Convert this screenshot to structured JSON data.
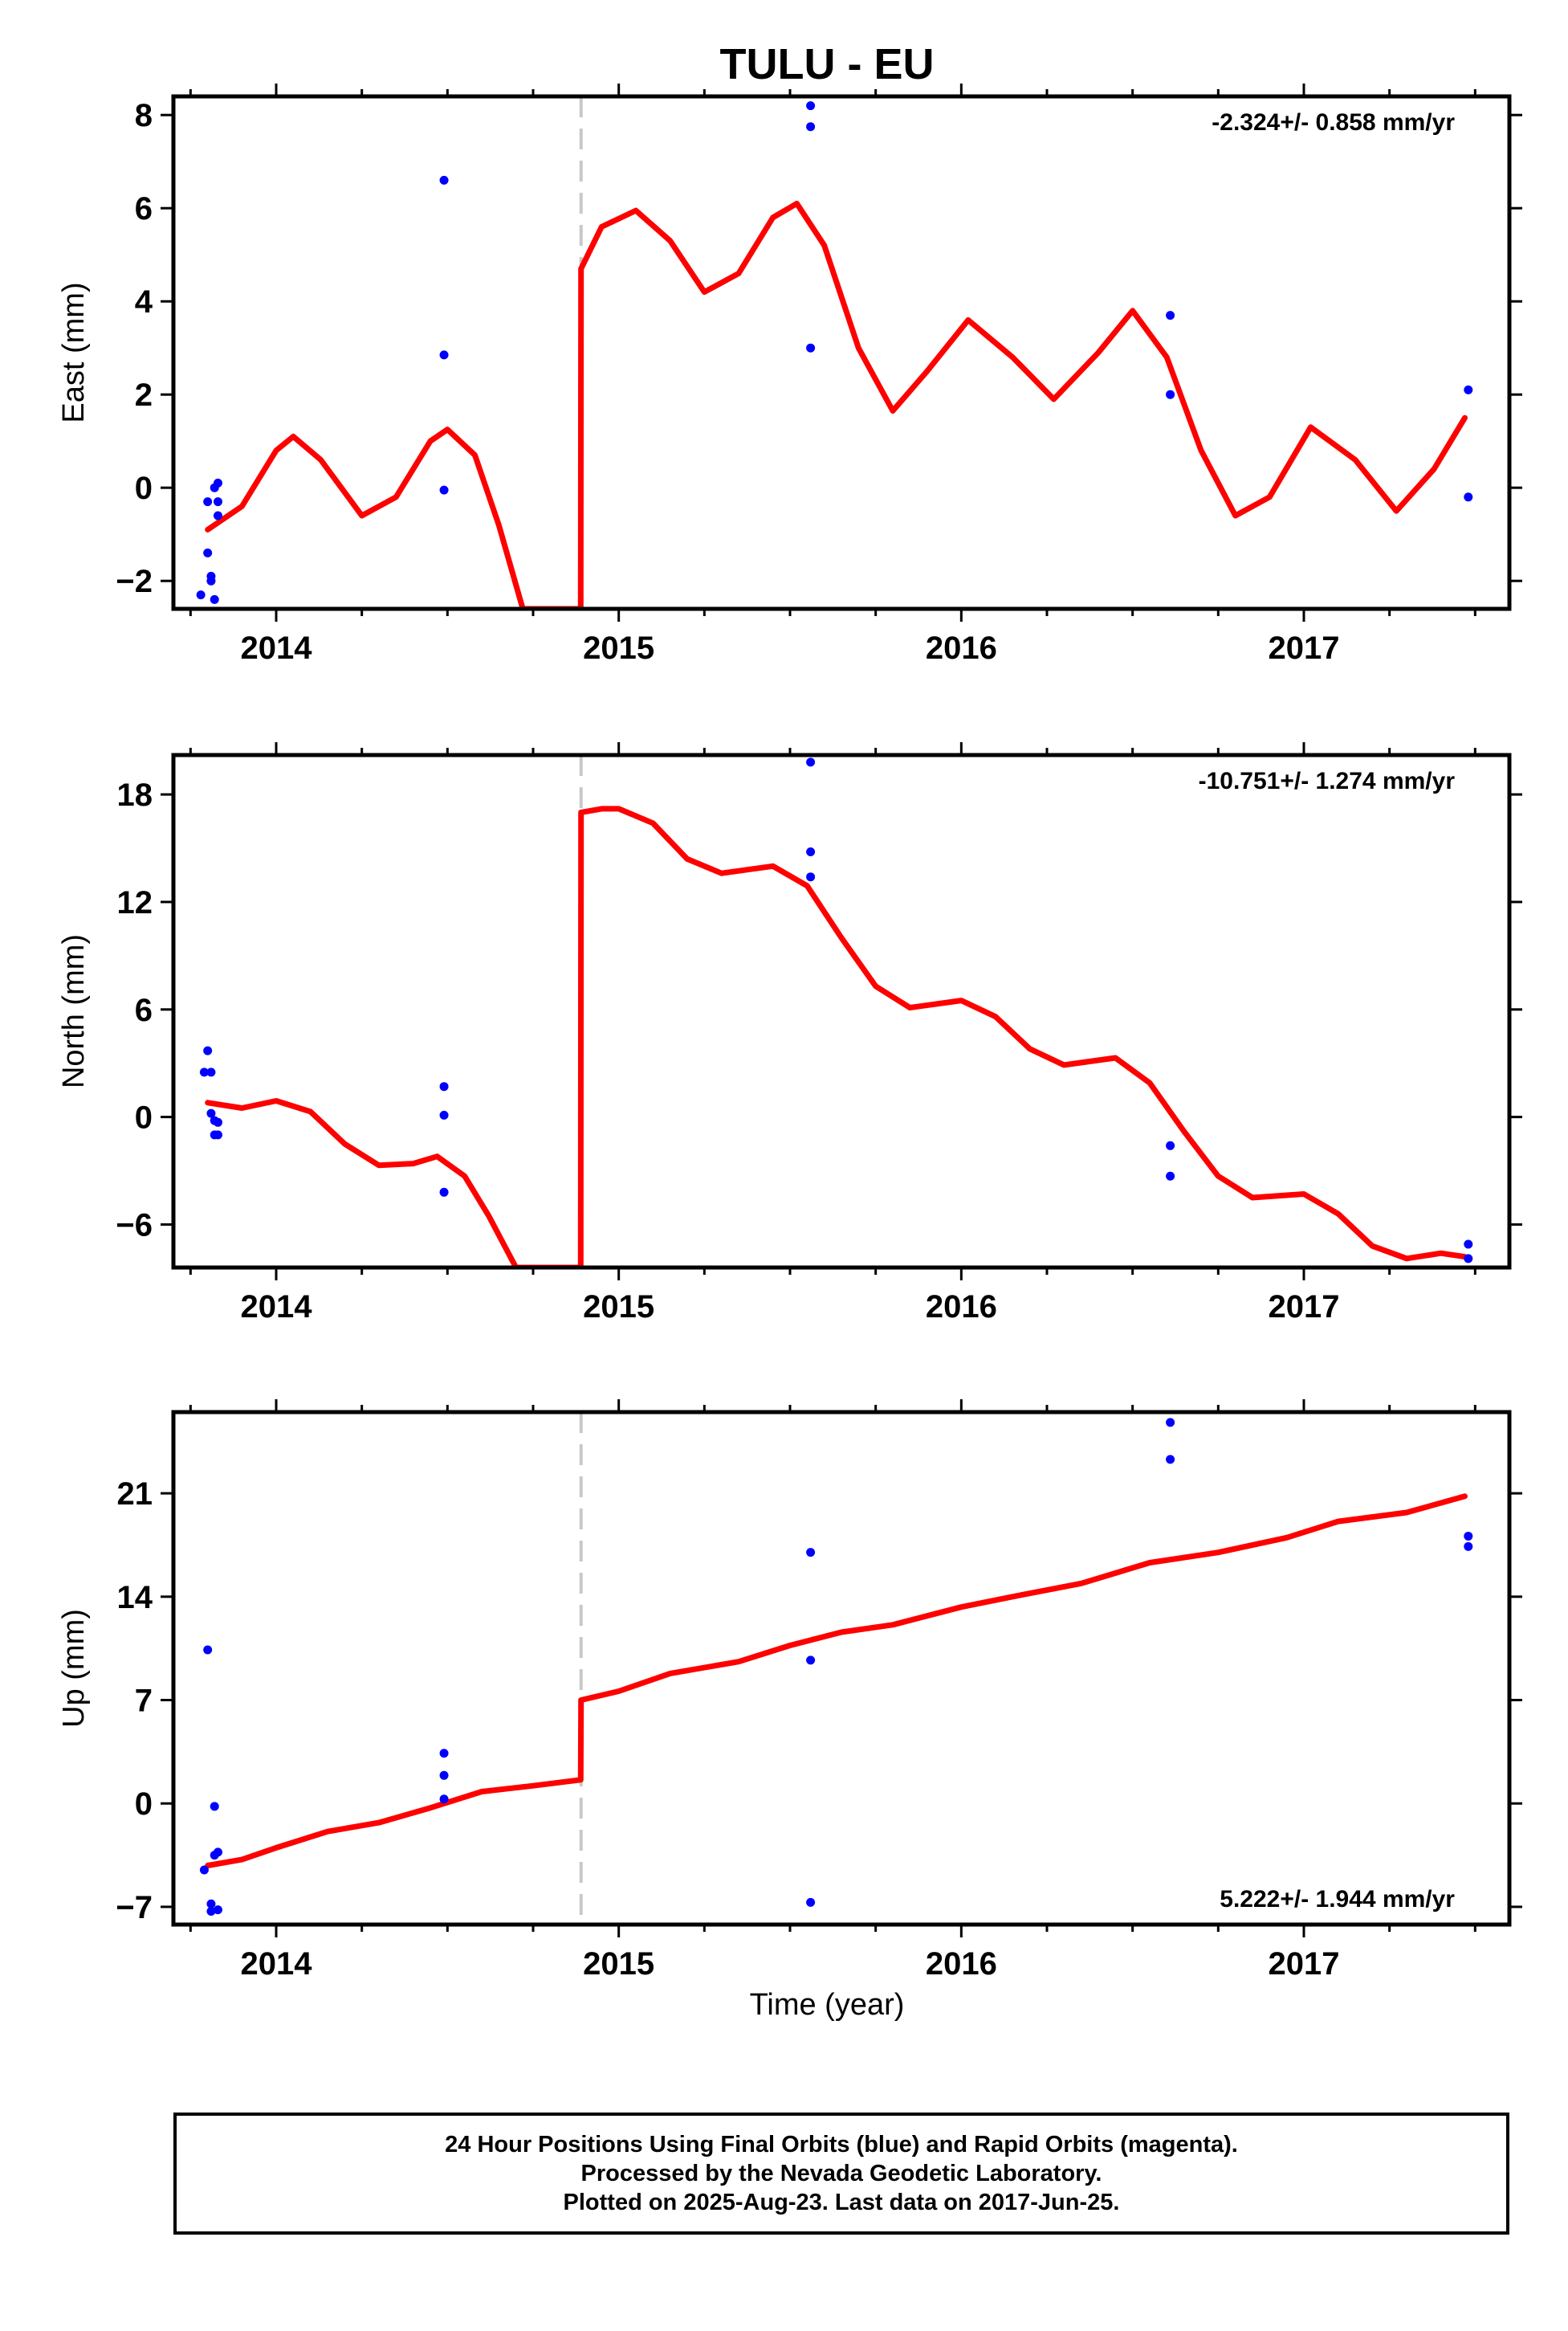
{
  "title": "TULU - EU",
  "colors": {
    "final_orbits": "#0000ff",
    "model": "#ff0000",
    "offset": "#c8c8c8",
    "frame": "#000000"
  },
  "xlabel": "Time (year)",
  "chart_data": [
    {
      "type": "scatter",
      "ylabel": "East (mm)",
      "rate_label": "-2.324+/- 0.858 mm/yr",
      "xlim": [
        2013.7,
        2017.6
      ],
      "ylim": [
        -2.6,
        8.4
      ],
      "xticks": [
        2014,
        2015,
        2016,
        2017
      ],
      "yticks": [
        -2,
        0,
        2,
        4,
        6,
        8
      ],
      "xtick_labels": [
        "2014",
        "2015",
        "2016",
        "2017"
      ],
      "ytick_labels": [
        "−2",
        "0",
        "2",
        "4",
        "6",
        "8"
      ],
      "offset_x": 2014.89,
      "points": [
        [
          2013.78,
          -2.3
        ],
        [
          2013.8,
          -0.3
        ],
        [
          2013.8,
          -1.4
        ],
        [
          2013.81,
          -1.9
        ],
        [
          2013.81,
          -2.0
        ],
        [
          2013.82,
          -2.4
        ],
        [
          2013.82,
          0.0
        ],
        [
          2013.83,
          0.1
        ],
        [
          2013.83,
          -0.3
        ],
        [
          2013.83,
          -0.6
        ],
        [
          2014.49,
          6.6
        ],
        [
          2014.49,
          2.85
        ],
        [
          2014.49,
          -0.05
        ],
        [
          2015.56,
          8.2
        ],
        [
          2015.56,
          7.75
        ],
        [
          2015.56,
          3.0
        ],
        [
          2016.61,
          3.7
        ],
        [
          2016.61,
          2.0
        ],
        [
          2017.48,
          2.1
        ],
        [
          2017.48,
          -0.2
        ]
      ],
      "model": [
        [
          2013.8,
          -0.9
        ],
        [
          2013.9,
          -0.4
        ],
        [
          2014.0,
          0.8
        ],
        [
          2014.05,
          1.1
        ],
        [
          2014.13,
          0.6
        ],
        [
          2014.25,
          -0.6
        ],
        [
          2014.35,
          -0.2
        ],
        [
          2014.45,
          1.0
        ],
        [
          2014.5,
          1.25
        ],
        [
          2014.58,
          0.7
        ],
        [
          2014.65,
          -0.8
        ],
        [
          2014.72,
          -2.6
        ],
        [
          2014.889,
          -2.6
        ],
        [
          2014.89,
          4.7
        ],
        [
          2014.95,
          5.6
        ],
        [
          2015.05,
          5.95
        ],
        [
          2015.15,
          5.3
        ],
        [
          2015.25,
          4.2
        ],
        [
          2015.35,
          4.6
        ],
        [
          2015.45,
          5.8
        ],
        [
          2015.52,
          6.1
        ],
        [
          2015.6,
          5.2
        ],
        [
          2015.7,
          3.0
        ],
        [
          2015.8,
          1.65
        ],
        [
          2015.9,
          2.5
        ],
        [
          2016.02,
          3.6
        ],
        [
          2016.15,
          2.8
        ],
        [
          2016.27,
          1.9
        ],
        [
          2016.4,
          2.9
        ],
        [
          2016.5,
          3.8
        ],
        [
          2016.6,
          2.8
        ],
        [
          2016.7,
          0.8
        ],
        [
          2016.8,
          -0.6
        ],
        [
          2016.9,
          -0.2
        ],
        [
          2017.02,
          1.3
        ],
        [
          2017.15,
          0.6
        ],
        [
          2017.27,
          -0.5
        ],
        [
          2017.38,
          0.4
        ],
        [
          2017.47,
          1.5
        ]
      ]
    },
    {
      "type": "scatter",
      "ylabel": "North (mm)",
      "rate_label": "-10.751+/- 1.274 mm/yr",
      "xlim": [
        2013.7,
        2017.6
      ],
      "ylim": [
        -8.4,
        20.2
      ],
      "xticks": [
        2014,
        2015,
        2016,
        2017
      ],
      "yticks": [
        -6,
        0,
        6,
        12,
        18
      ],
      "xtick_labels": [
        "2014",
        "2015",
        "2016",
        "2017"
      ],
      "ytick_labels": [
        "−6",
        "0",
        "6",
        "12",
        "18"
      ],
      "offset_x": 2014.89,
      "points": [
        [
          2013.79,
          2.5
        ],
        [
          2013.8,
          3.7
        ],
        [
          2013.81,
          2.5
        ],
        [
          2013.81,
          0.2
        ],
        [
          2013.82,
          -0.2
        ],
        [
          2013.82,
          -1.0
        ],
        [
          2013.83,
          -0.3
        ],
        [
          2013.83,
          -1.0
        ],
        [
          2014.49,
          1.7
        ],
        [
          2014.49,
          0.1
        ],
        [
          2014.49,
          -4.2
        ],
        [
          2015.56,
          19.8
        ],
        [
          2015.56,
          14.8
        ],
        [
          2015.56,
          13.4
        ],
        [
          2016.61,
          -1.6
        ],
        [
          2016.61,
          -3.3
        ],
        [
          2017.48,
          -7.1
        ],
        [
          2017.48,
          -7.9
        ]
      ],
      "model": [
        [
          2013.8,
          0.8
        ],
        [
          2013.9,
          0.5
        ],
        [
          2014.0,
          0.9
        ],
        [
          2014.1,
          0.3
        ],
        [
          2014.2,
          -1.5
        ],
        [
          2014.3,
          -2.7
        ],
        [
          2014.4,
          -2.6
        ],
        [
          2014.47,
          -2.2
        ],
        [
          2014.55,
          -3.3
        ],
        [
          2014.62,
          -5.5
        ],
        [
          2014.7,
          -8.4
        ],
        [
          2014.889,
          -8.4
        ],
        [
          2014.89,
          17.0
        ],
        [
          2014.95,
          17.2
        ],
        [
          2015.0,
          17.2
        ],
        [
          2015.1,
          16.4
        ],
        [
          2015.2,
          14.4
        ],
        [
          2015.3,
          13.6
        ],
        [
          2015.45,
          14.0
        ],
        [
          2015.55,
          12.9
        ],
        [
          2015.65,
          10.0
        ],
        [
          2015.75,
          7.3
        ],
        [
          2015.85,
          6.1
        ],
        [
          2016.0,
          6.5
        ],
        [
          2016.1,
          5.6
        ],
        [
          2016.2,
          3.8
        ],
        [
          2016.3,
          2.9
        ],
        [
          2016.45,
          3.3
        ],
        [
          2016.55,
          1.9
        ],
        [
          2016.65,
          -0.8
        ],
        [
          2016.75,
          -3.3
        ],
        [
          2016.85,
          -4.5
        ],
        [
          2017.0,
          -4.3
        ],
        [
          2017.1,
          -5.4
        ],
        [
          2017.2,
          -7.2
        ],
        [
          2017.3,
          -7.9
        ],
        [
          2017.4,
          -7.6
        ],
        [
          2017.47,
          -7.8
        ]
      ]
    },
    {
      "type": "scatter",
      "ylabel": "Up (mm)",
      "rate_label": "5.222+/- 1.944 mm/yr",
      "xlim": [
        2013.7,
        2017.6
      ],
      "ylim": [
        -8.2,
        26.5
      ],
      "xticks": [
        2014,
        2015,
        2016,
        2017
      ],
      "yticks": [
        -7,
        0,
        7,
        14,
        21
      ],
      "xtick_labels": [
        "2014",
        "2015",
        "2016",
        "2017"
      ],
      "ytick_labels": [
        "−7",
        "0",
        "7",
        "14",
        "21"
      ],
      "offset_x": 2014.89,
      "points": [
        [
          2013.79,
          -4.5
        ],
        [
          2013.8,
          10.4
        ],
        [
          2013.81,
          -6.8
        ],
        [
          2013.81,
          -7.3
        ],
        [
          2013.82,
          -3.5
        ],
        [
          2013.82,
          -0.2
        ],
        [
          2013.83,
          -3.3
        ],
        [
          2013.83,
          -7.2
        ],
        [
          2014.49,
          3.4
        ],
        [
          2014.49,
          1.9
        ],
        [
          2014.49,
          0.3
        ],
        [
          2015.56,
          17.0
        ],
        [
          2015.56,
          9.7
        ],
        [
          2015.56,
          -6.7
        ],
        [
          2016.61,
          25.8
        ],
        [
          2016.61,
          23.3
        ],
        [
          2017.48,
          18.1
        ],
        [
          2017.48,
          17.4
        ]
      ],
      "model": [
        [
          2013.8,
          -4.2
        ],
        [
          2013.9,
          -3.8
        ],
        [
          2014.0,
          -3.0
        ],
        [
          2014.15,
          -1.9
        ],
        [
          2014.3,
          -1.3
        ],
        [
          2014.45,
          -0.3
        ],
        [
          2014.6,
          0.8
        ],
        [
          2014.75,
          1.2
        ],
        [
          2014.889,
          1.6
        ],
        [
          2014.89,
          7.0
        ],
        [
          2015.0,
          7.6
        ],
        [
          2015.15,
          8.8
        ],
        [
          2015.35,
          9.6
        ],
        [
          2015.5,
          10.7
        ],
        [
          2015.65,
          11.6
        ],
        [
          2015.8,
          12.1
        ],
        [
          2016.0,
          13.3
        ],
        [
          2016.15,
          14.0
        ],
        [
          2016.35,
          14.9
        ],
        [
          2016.55,
          16.3
        ],
        [
          2016.75,
          17.0
        ],
        [
          2016.95,
          18.0
        ],
        [
          2017.1,
          19.1
        ],
        [
          2017.3,
          19.7
        ],
        [
          2017.47,
          20.8
        ]
      ]
    }
  ],
  "footer": {
    "line1": "24 Hour Positions Using Final Orbits (blue) and Rapid Orbits (magenta).",
    "line2": "Processed by the Nevada Geodetic Laboratory.",
    "line3": "Plotted on 2025-Aug-23. Last data on 2017-Jun-25."
  }
}
